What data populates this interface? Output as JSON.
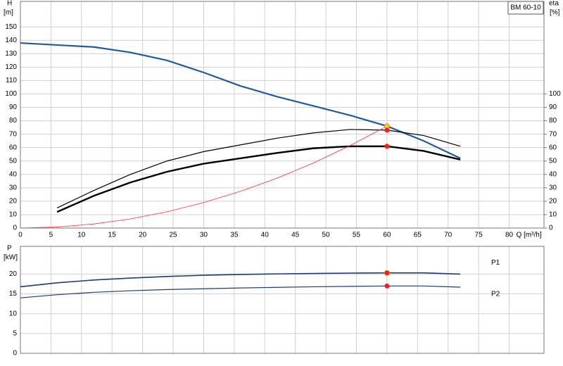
{
  "chart_data": [
    {
      "type": "line",
      "title": "BM 60-10",
      "ylabel": "H",
      "yunit": "[m]",
      "y2label": "eta",
      "y2unit": "[%]",
      "xlabel": "Q [m³/h]",
      "xlim": [
        0,
        85.7
      ],
      "xticks": [
        0,
        5,
        10,
        15,
        20,
        25,
        30,
        35,
        40,
        45,
        50,
        55,
        60,
        65,
        70,
        75,
        80
      ],
      "ylim": [
        0,
        169
      ],
      "yticks": [
        0,
        10,
        20,
        30,
        40,
        50,
        60,
        70,
        80,
        90,
        100,
        110,
        120,
        130,
        140,
        150
      ],
      "y2lim": [
        0,
        169
      ],
      "y2ticks": [
        0,
        10,
        20,
        30,
        40,
        50,
        60,
        70,
        80,
        90,
        100
      ],
      "grid": true,
      "x": [
        0,
        6,
        12,
        18,
        24,
        30,
        36,
        42,
        48,
        54,
        60,
        66,
        72
      ],
      "series": [
        {
          "color": "#1f5c9c",
          "width": 2.2,
          "values": [
            138,
            136.5,
            135,
            131,
            125,
            116,
            106,
            98,
            91,
            84,
            76,
            65,
            52
          ]
        },
        {
          "color": "#000000",
          "width": 1.2,
          "axis": "y2",
          "values": [
            null,
            15,
            28,
            40,
            50,
            57,
            62,
            67,
            71,
            73.5,
            73,
            69,
            61
          ]
        },
        {
          "color": "#000000",
          "width": 2.4,
          "axis": "y2",
          "values": [
            null,
            12,
            24,
            34,
            42,
            48,
            52,
            56,
            59.5,
            61,
            61,
            57.5,
            51
          ]
        },
        {
          "color": "#ff3030",
          "width": 0.8,
          "values": [
            0,
            0.76,
            3.04,
            6.84,
            12.2,
            19,
            27.4,
            37.2,
            48.6,
            61.6,
            76,
            null,
            null
          ]
        }
      ],
      "points": {
        "x": [
          60,
          60,
          60
        ],
        "values": [
          76,
          73,
          61
        ],
        "colors": [
          "#ffd21f",
          "#ff1a1a",
          "#ff1a1a"
        ]
      }
    },
    {
      "type": "line",
      "ylabel": "P",
      "yunit": "[kW]",
      "xlim": [
        0,
        85.7
      ],
      "xticks": [
        0,
        5,
        10,
        15,
        20,
        25,
        30,
        35,
        40,
        45,
        50,
        55,
        60,
        65,
        70,
        75,
        80
      ],
      "ylim": [
        0,
        27
      ],
      "yticks": [
        0,
        5,
        10,
        15,
        20
      ],
      "grid": true,
      "x": [
        0,
        6,
        12,
        18,
        24,
        30,
        36,
        42,
        48,
        54,
        60,
        66,
        72
      ],
      "series": [
        {
          "name": "P1",
          "color": "#1a3c78",
          "width": 1.6,
          "values": [
            16.8,
            17.8,
            18.5,
            19,
            19.4,
            19.7,
            19.9,
            20.05,
            20.15,
            20.25,
            20.3,
            20.3,
            20
          ]
        },
        {
          "name": "P2",
          "color": "#1a3c78",
          "width": 1.2,
          "values": [
            14,
            14.8,
            15.4,
            15.8,
            16.1,
            16.3,
            16.5,
            16.65,
            16.8,
            16.9,
            17,
            17,
            16.7
          ]
        }
      ],
      "points": {
        "x": [
          60,
          60
        ],
        "values": [
          20.3,
          17
        ],
        "colors": [
          "#ff1a1a",
          "#ff1a1a"
        ]
      }
    }
  ]
}
